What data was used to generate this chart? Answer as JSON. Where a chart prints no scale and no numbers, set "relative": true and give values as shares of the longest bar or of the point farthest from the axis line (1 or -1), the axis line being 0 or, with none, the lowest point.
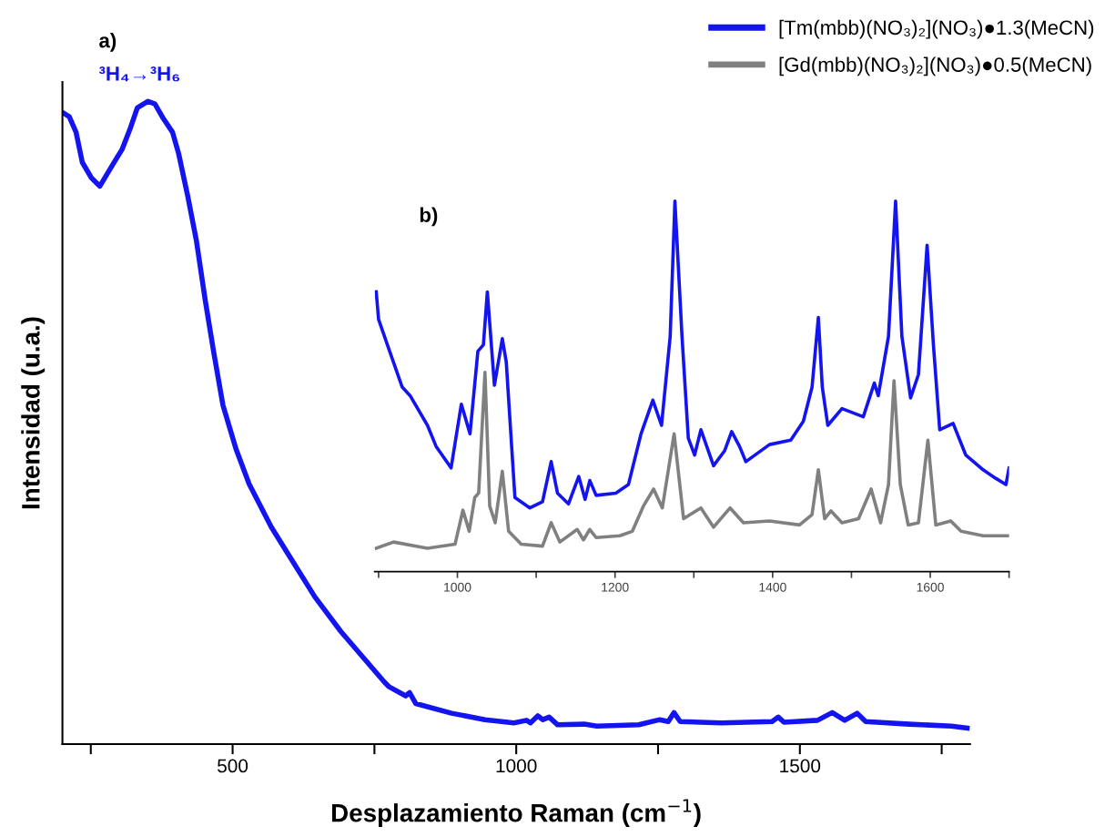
{
  "chart_data": [
    {
      "type": "line",
      "relative": true,
      "xlabel": "Desplazamiento Raman (cm$^{−1}$)",
      "ylabel": "Intensidad (u.a.)",
      "xlim": [
        200,
        1800
      ],
      "xticks": [
        {
          "value": 250,
          "label": null
        },
        500,
        {
          "value": 750,
          "label": null
        },
        1000,
        {
          "value": 1250,
          "label": null
        },
        1500,
        {
          "value": 1750,
          "label": null
        }
      ],
      "annotations": [
        "a)",
        "³H₄→³H₆"
      ],
      "x": [
        203,
        212,
        224,
        235,
        251,
        266,
        289,
        305,
        320,
        332,
        351,
        363,
        378,
        394,
        405,
        421,
        436,
        452,
        467,
        483,
        506,
        529,
        568,
        606,
        645,
        691,
        730,
        767,
        776,
        805,
        812,
        823,
        886,
        945,
        996,
        1018,
        1025,
        1038,
        1047,
        1058,
        1073,
        1120,
        1142,
        1216,
        1253,
        1268,
        1278,
        1289,
        1362,
        1451,
        1462,
        1472,
        1531,
        1557,
        1579,
        1601,
        1616,
        1693,
        1767,
        1795
      ],
      "series": [
        {
          "color": "#1414f0",
          "values": [
            0.981,
            0.976,
            0.952,
            0.905,
            0.881,
            0.868,
            0.902,
            0.925,
            0.959,
            0.99,
            1.0,
            0.996,
            0.973,
            0.952,
            0.918,
            0.852,
            0.784,
            0.689,
            0.608,
            0.527,
            0.459,
            0.405,
            0.338,
            0.284,
            0.229,
            0.175,
            0.135,
            0.097,
            0.089,
            0.075,
            0.08,
            0.063,
            0.048,
            0.038,
            0.033,
            0.037,
            0.033,
            0.044,
            0.038,
            0.042,
            0.03,
            0.031,
            0.028,
            0.03,
            0.038,
            0.035,
            0.049,
            0.035,
            0.033,
            0.035,
            0.042,
            0.034,
            0.037,
            0.049,
            0.037,
            0.048,
            0.035,
            0.031,
            0.028,
            0.025
          ]
        }
      ]
    },
    {
      "type": "line",
      "relative": true,
      "legend": "top right",
      "tick_labels": "x",
      "xlim": [
        895,
        1700
      ],
      "xticks": [
        {
          "value": 900,
          "label": null
        },
        1000,
        {
          "value": 1100,
          "label": null
        },
        1200,
        {
          "value": 1300,
          "label": null
        },
        1400,
        {
          "value": 1500,
          "label": null
        },
        1600,
        {
          "value": 1700,
          "label": null
        }
      ],
      "annotations": [
        "b)"
      ],
      "series": [
        {
          "name": "[Tm(mbb)(NO₃)₂](NO₃)●1.3(MeCN)",
          "color": "#1414f0",
          "x": [
            897,
            900,
            913,
            930,
            940,
            962,
            973,
            992,
            1005,
            1016,
            1026,
            1033,
            1038,
            1047,
            1057,
            1062,
            1073,
            1092,
            1108,
            1119,
            1127,
            1141,
            1154,
            1162,
            1168,
            1176,
            1201,
            1217,
            1233,
            1248,
            1259,
            1270,
            1276,
            1285,
            1293,
            1301,
            1309,
            1325,
            1339,
            1348,
            1358,
            1366,
            1396,
            1423,
            1439,
            1450,
            1458,
            1463,
            1470,
            1488,
            1515,
            1529,
            1534,
            1547,
            1556,
            1564,
            1575,
            1585,
            1596,
            1604,
            1612,
            1629,
            1645,
            1667,
            1683,
            1696,
            1700
          ],
          "values": [
            0.755,
            0.681,
            0.601,
            0.498,
            0.475,
            0.395,
            0.338,
            0.28,
            0.452,
            0.372,
            0.595,
            0.612,
            0.755,
            0.503,
            0.629,
            0.566,
            0.2,
            0.172,
            0.189,
            0.297,
            0.212,
            0.183,
            0.257,
            0.195,
            0.246,
            0.206,
            0.212,
            0.235,
            0.372,
            0.463,
            0.395,
            0.635,
            1.0,
            0.635,
            0.36,
            0.315,
            0.383,
            0.286,
            0.326,
            0.378,
            0.338,
            0.297,
            0.343,
            0.355,
            0.406,
            0.498,
            0.686,
            0.498,
            0.395,
            0.44,
            0.418,
            0.509,
            0.475,
            0.635,
            1.0,
            0.635,
            0.469,
            0.532,
            0.881,
            0.612,
            0.383,
            0.4,
            0.315,
            0.275,
            0.252,
            0.235,
            0.28
          ]
        },
        {
          "name": "[Gd(mbb)(NO₃)₂](NO₃)●0.5(MeCN)",
          "color": "#808080",
          "x": [
            897,
            919,
            962,
            997,
            1007,
            1015,
            1022,
            1027,
            1035,
            1041,
            1048,
            1057,
            1065,
            1081,
            1108,
            1119,
            1130,
            1152,
            1160,
            1168,
            1176,
            1206,
            1222,
            1236,
            1249,
            1260,
            1275,
            1287,
            1309,
            1325,
            1346,
            1363,
            1396,
            1434,
            1450,
            1458,
            1466,
            1474,
            1488,
            1509,
            1525,
            1537,
            1547,
            1554,
            1562,
            1572,
            1585,
            1597,
            1607,
            1626,
            1639,
            1667,
            1700
          ],
          "values": [
            0.063,
            0.08,
            0.063,
            0.074,
            0.166,
            0.109,
            0.2,
            0.212,
            0.538,
            0.177,
            0.132,
            0.271,
            0.109,
            0.074,
            0.069,
            0.132,
            0.08,
            0.114,
            0.086,
            0.114,
            0.092,
            0.097,
            0.109,
            0.177,
            0.223,
            0.172,
            0.372,
            0.143,
            0.172,
            0.12,
            0.172,
            0.132,
            0.137,
            0.126,
            0.154,
            0.275,
            0.143,
            0.164,
            0.132,
            0.143,
            0.223,
            0.132,
            0.235,
            0.515,
            0.235,
            0.126,
            0.132,
            0.355,
            0.126,
            0.137,
            0.109,
            0.097,
            0.097
          ]
        }
      ]
    }
  ]
}
